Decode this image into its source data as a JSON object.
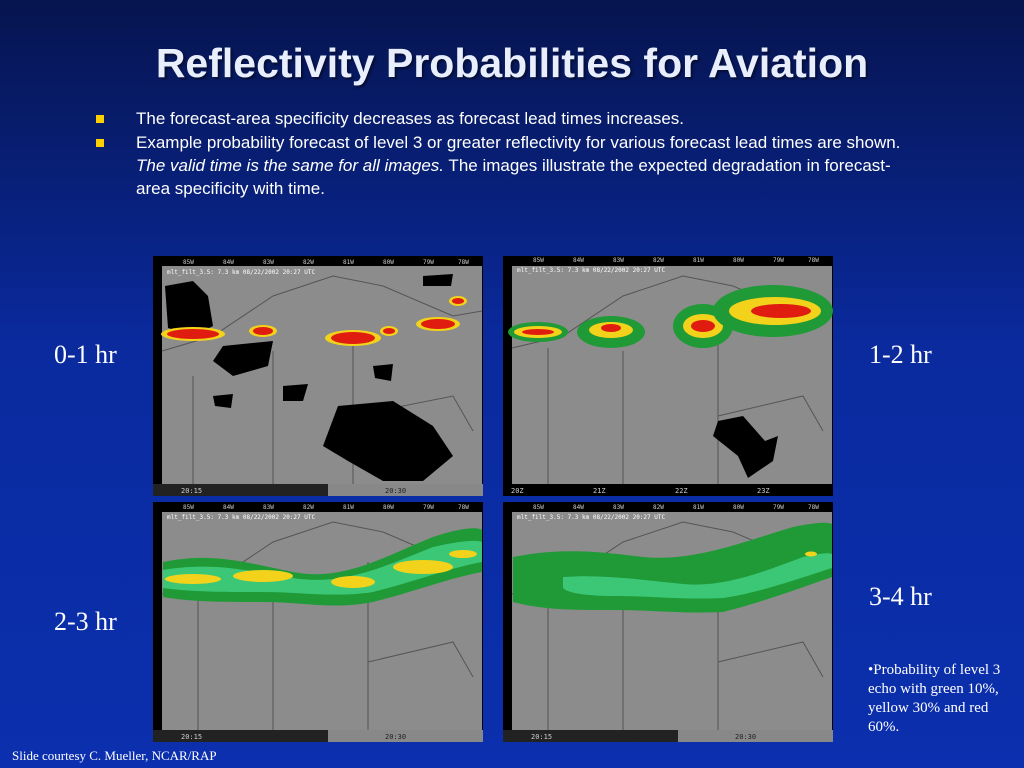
{
  "slide": {
    "title": "Reflectivity Probabilities for Aviation",
    "bullets": [
      {
        "text": "The forecast-area specificity decreases as forecast lead times increases."
      },
      {
        "text_before": "Example probability forecast of level 3 or greater reflectivity for various forecast lead times are shown. ",
        "text_italic": "The valid time is the same for all images.",
        "text_after": " The images illustrate the expected degradation in forecast-area specificity with time."
      }
    ],
    "legend_note": "•Probability of level 3 echo with green 10%, yellow 30% and red 60%.",
    "credit": "Slide courtesy C. Mueller, NCAR/RAP"
  },
  "panels": [
    {
      "lead_label": "0-1 hr",
      "header": "mlt_filt_3.5: 7.3 km 08/22/2002 20:27 UTC",
      "lon_labels": [
        "85W",
        "84W",
        "83W",
        "82W",
        "81W",
        "80W",
        "79W",
        "78W"
      ],
      "footer_left": "20:15",
      "footer_right": "20:30"
    },
    {
      "lead_label": "1-2 hr",
      "header": "mlt_filt_3.5: 7.3 km 08/22/2002 20:27 UTC",
      "lon_labels": [
        "85W",
        "84W",
        "83W",
        "82W",
        "81W",
        "80W",
        "79W",
        "78W"
      ],
      "footer_ticks": [
        "20Z",
        "21Z",
        "22Z",
        "23Z"
      ]
    },
    {
      "lead_label": "2-3 hr",
      "header": "mlt_filt_3.5: 7.3 km 08/22/2002 20:27 UTC",
      "lon_labels": [
        "85W",
        "84W",
        "83W",
        "82W",
        "81W",
        "80W",
        "79W",
        "78W"
      ],
      "footer_left": "20:15",
      "footer_right": "20:30"
    },
    {
      "lead_label": "3-4 hr",
      "header": "mlt_filt_3.5: 7.3 km 08/22/2002 20:27 UTC",
      "lon_labels": [
        "85W",
        "84W",
        "83W",
        "82W",
        "81W",
        "80W",
        "79W",
        "78W"
      ],
      "footer_left": "20:15",
      "footer_right": "20:30"
    }
  ],
  "colors": {
    "green_10pct": "#1f9a36",
    "yellow_30pct": "#f2d21a",
    "red_60pct": "#e01c10",
    "map_bg": "#8c8c8c",
    "bullet": "#ffd000"
  }
}
